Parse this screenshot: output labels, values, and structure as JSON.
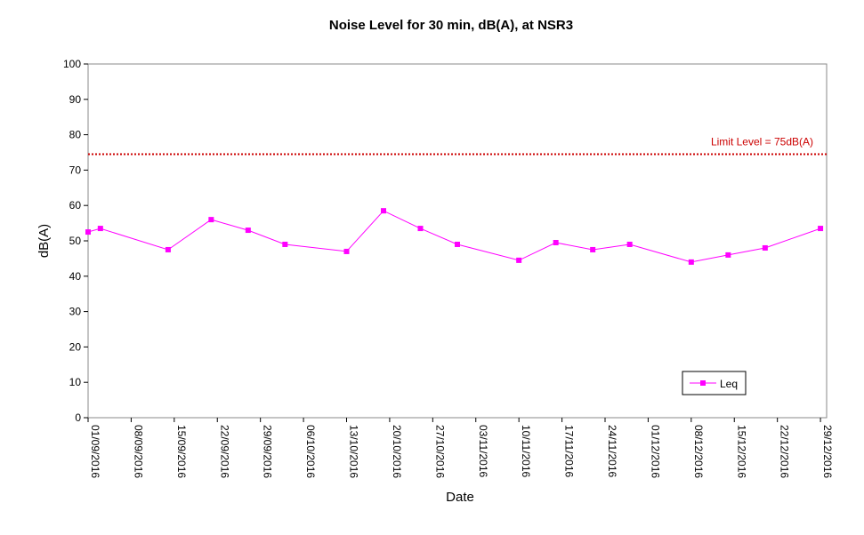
{
  "chart_data": {
    "type": "line",
    "title": "Noise Level for 30 min, dB(A), at NSR3",
    "xlabel": "Date",
    "ylabel": "dB(A)",
    "ylim": [
      0,
      100
    ],
    "yticks": [
      0,
      10,
      20,
      30,
      40,
      50,
      60,
      70,
      80,
      90,
      100
    ],
    "xlim": [
      "01/09/2016",
      "30/12/2016"
    ],
    "xticks": [
      "01/09/2016",
      "08/09/2016",
      "15/09/2016",
      "22/09/2016",
      "29/09/2016",
      "06/10/2016",
      "13/10/2016",
      "20/10/2016",
      "27/10/2016",
      "03/11/2016",
      "10/11/2016",
      "17/11/2016",
      "24/11/2016",
      "01/12/2016",
      "08/12/2016",
      "15/12/2016",
      "22/12/2016",
      "29/12/2016"
    ],
    "grid": false,
    "legend": "bottom-right",
    "series": [
      {
        "name": "Leq",
        "color": "#ff00ff",
        "marker": "square",
        "points": [
          {
            "x": "01/09/2016",
            "y": 52.5
          },
          {
            "x": "03/09/2016",
            "y": 53.5
          },
          {
            "x": "14/09/2016",
            "y": 47.5
          },
          {
            "x": "21/09/2016",
            "y": 56.0
          },
          {
            "x": "27/09/2016",
            "y": 53.0
          },
          {
            "x": "03/10/2016",
            "y": 49.0
          },
          {
            "x": "13/10/2016",
            "y": 47.0
          },
          {
            "x": "19/10/2016",
            "y": 58.5
          },
          {
            "x": "25/10/2016",
            "y": 53.5
          },
          {
            "x": "31/10/2016",
            "y": 49.0
          },
          {
            "x": "10/11/2016",
            "y": 44.5
          },
          {
            "x": "16/11/2016",
            "y": 49.5
          },
          {
            "x": "22/11/2016",
            "y": 47.5
          },
          {
            "x": "28/11/2016",
            "y": 49.0
          },
          {
            "x": "08/12/2016",
            "y": 44.0
          },
          {
            "x": "14/12/2016",
            "y": 46.0
          },
          {
            "x": "20/12/2016",
            "y": 48.0
          },
          {
            "x": "29/12/2016",
            "y": 53.5
          }
        ]
      }
    ],
    "reference_lines": [
      {
        "label": "Limit Level = 75dB(A)",
        "y": 74.5,
        "color": "#cc0000",
        "style": "dotted"
      }
    ]
  }
}
